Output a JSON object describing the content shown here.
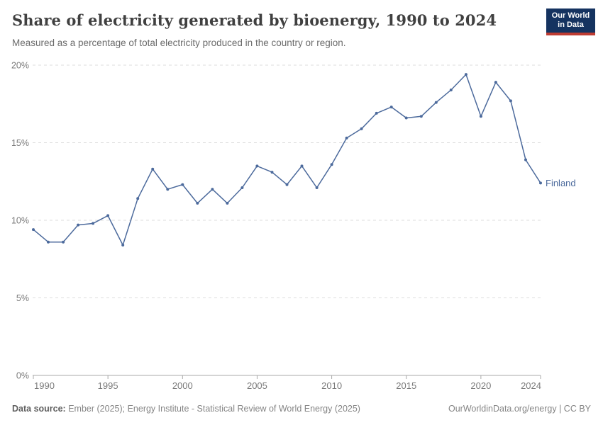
{
  "header": {
    "title": "Share of electricity generated by bioenergy, 1990 to 2024",
    "subtitle": "Measured as a percentage of total electricity produced in the country or region.",
    "logo": {
      "line1": "Our World",
      "line2": "in Data"
    }
  },
  "chart_data": {
    "type": "line",
    "title": "Share of electricity generated by bioenergy, 1990 to 2024",
    "x": [
      1990,
      1991,
      1992,
      1993,
      1994,
      1995,
      1996,
      1997,
      1998,
      1999,
      2000,
      2001,
      2002,
      2003,
      2004,
      2005,
      2006,
      2007,
      2008,
      2009,
      2010,
      2011,
      2012,
      2013,
      2014,
      2015,
      2016,
      2017,
      2018,
      2019,
      2020,
      2021,
      2022,
      2023,
      2024
    ],
    "series": [
      {
        "name": "Finland",
        "color": "#4c6a9c",
        "values": [
          9.4,
          8.6,
          8.6,
          9.7,
          9.8,
          10.3,
          8.4,
          11.4,
          13.3,
          12.0,
          12.3,
          11.1,
          12.0,
          11.1,
          12.1,
          13.5,
          13.1,
          12.3,
          13.5,
          12.1,
          13.6,
          15.3,
          15.9,
          16.9,
          17.3,
          16.6,
          16.7,
          17.6,
          18.4,
          19.4,
          16.7,
          18.9,
          17.7,
          13.9,
          12.4
        ]
      }
    ],
    "ylim": [
      0,
      20
    ],
    "yticks": [
      {
        "value": 0,
        "label": "0%"
      },
      {
        "value": 5,
        "label": "5%"
      },
      {
        "value": 10,
        "label": "10%"
      },
      {
        "value": 15,
        "label": "15%"
      },
      {
        "value": 20,
        "label": "20%"
      }
    ],
    "xticks": [
      {
        "value": 1990,
        "label": "1990"
      },
      {
        "value": 1995,
        "label": "1995"
      },
      {
        "value": 2000,
        "label": "2000"
      },
      {
        "value": 2005,
        "label": "2005"
      },
      {
        "value": 2010,
        "label": "2010"
      },
      {
        "value": 2015,
        "label": "2015"
      },
      {
        "value": 2020,
        "label": "2020"
      },
      {
        "value": 2024,
        "label": "2024"
      }
    ],
    "grid": "horizontal-dashed",
    "legend_position": "end-of-line-label",
    "xlabel": "",
    "ylabel": ""
  },
  "colors": {
    "accent_line": "#4c6a9c",
    "grid": "#dcdcdc",
    "axis": "#a8a8a8",
    "tick_text": "#7a7a7a",
    "logo_bg": "#153360",
    "logo_stripe": "#be3c32"
  },
  "footer": {
    "source_label": "Data source:",
    "source_text": " Ember (2025); Energy Institute - Statistical Review of World Energy (2025)",
    "credit": "OurWorldinData.org/energy | CC BY"
  }
}
